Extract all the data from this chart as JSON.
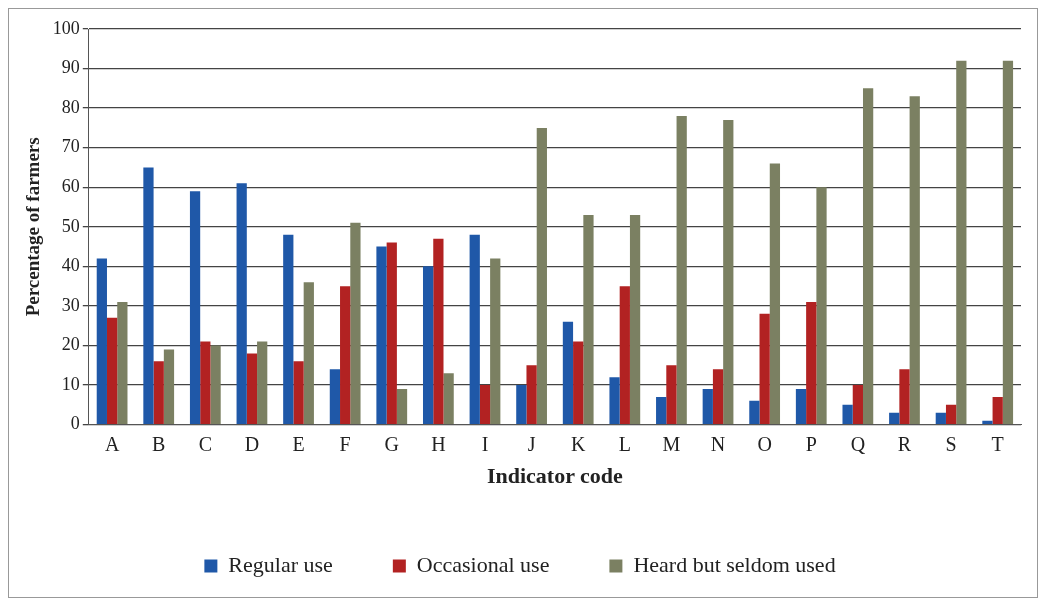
{
  "chart_data": {
    "type": "bar",
    "xlabel": "Indicator code",
    "ylabel": "Percentage of farmers",
    "categories": [
      "A",
      "B",
      "C",
      "D",
      "E",
      "F",
      "G",
      "H",
      "I",
      "J",
      "K",
      "L",
      "M",
      "N",
      "O",
      "P",
      "Q",
      "R",
      "S",
      "T"
    ],
    "series": [
      {
        "name": "Regular use",
        "color": "#1f58a8",
        "values": [
          42,
          65,
          59,
          61,
          48,
          14,
          45,
          40,
          48,
          10,
          26,
          12,
          7,
          9,
          6,
          9,
          5,
          3,
          3,
          1
        ]
      },
      {
        "name": "Occasional use",
        "color": "#b22222",
        "values": [
          27,
          16,
          21,
          18,
          16,
          35,
          46,
          47,
          10,
          15,
          21,
          35,
          15,
          14,
          28,
          31,
          10,
          14,
          5,
          7
        ]
      },
      {
        "name": "Heard but seldom used",
        "color": "#7b8062",
        "values": [
          31,
          19,
          20,
          21,
          36,
          51,
          9,
          13,
          42,
          75,
          53,
          53,
          78,
          77,
          66,
          60,
          85,
          83,
          92,
          92
        ]
      }
    ],
    "ylim": [
      0,
      100
    ],
    "yticks": [
      0,
      10,
      20,
      30,
      40,
      50,
      60,
      70,
      80,
      90,
      100
    ],
    "grid": "y",
    "legend": "bottom"
  }
}
